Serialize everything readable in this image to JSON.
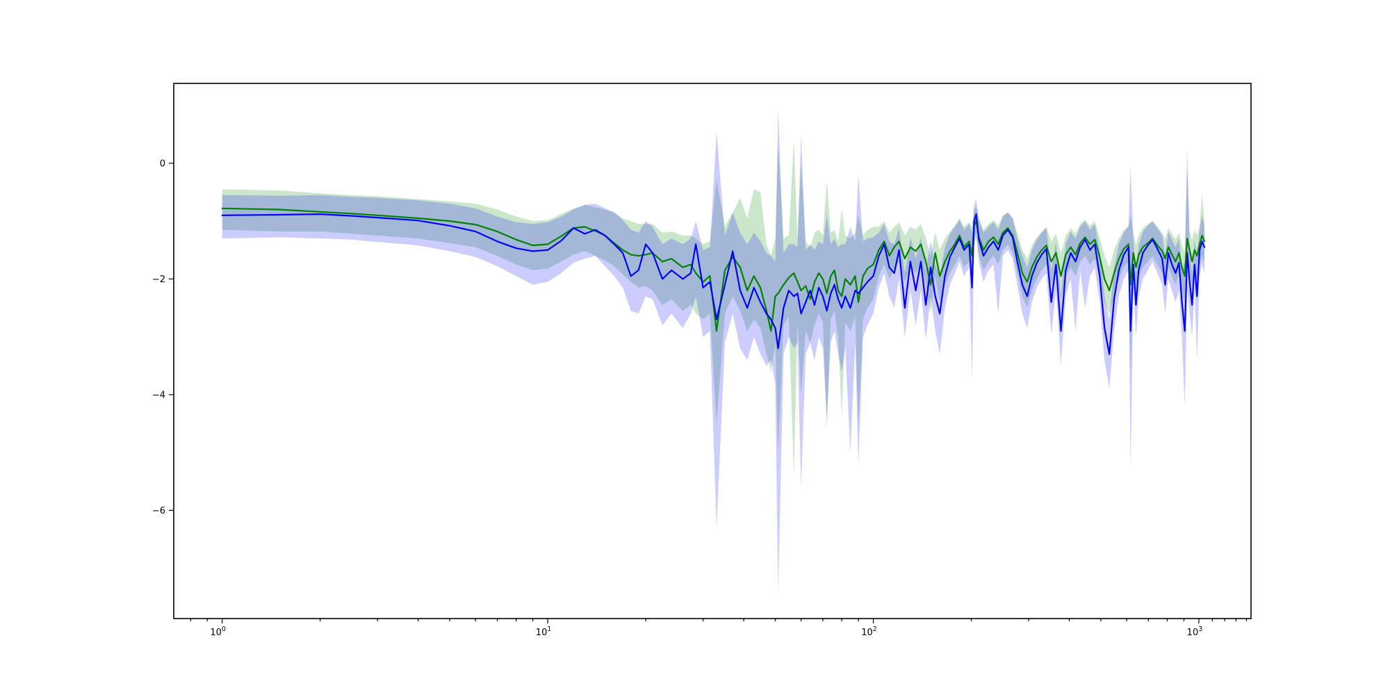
{
  "figure": {
    "background": "#ffffff",
    "title": "",
    "xlabel": "",
    "ylabel": ""
  },
  "chart_data": {
    "type": "line",
    "x_scale": "log",
    "grid": false,
    "legend": null,
    "title": "",
    "xlabel": "",
    "ylabel": "",
    "x_range": [
      0.71,
      1446
    ],
    "y_range": [
      -7.87,
      1.38
    ],
    "x_ticks": [
      {
        "base": "10",
        "exp": "0",
        "value": 1
      },
      {
        "base": "10",
        "exp": "1",
        "value": 10
      },
      {
        "base": "10",
        "exp": "2",
        "value": 100
      },
      {
        "base": "10",
        "exp": "3",
        "value": 1000
      }
    ],
    "x_minor_ticks": [
      0.8,
      0.9,
      2,
      3,
      4,
      5,
      6,
      7,
      8,
      9,
      20,
      30,
      40,
      50,
      60,
      70,
      80,
      90,
      200,
      300,
      400,
      500,
      600,
      700,
      800,
      900,
      1100,
      1200,
      1300,
      1400
    ],
    "y_ticks": [
      {
        "label": "0",
        "value": 0
      },
      {
        "label": "−2",
        "value": -2
      },
      {
        "label": "−4",
        "value": -4
      },
      {
        "label": "−6",
        "value": -6
      }
    ],
    "series": [
      {
        "name": "green-series",
        "line_color": "#008000",
        "band_color_rgba": "rgba(0,128,0,0.2)",
        "line_width": 2.2
      },
      {
        "name": "blue-series",
        "line_color": "#0000ff",
        "band_color_rgba": "rgba(0,0,255,0.2)",
        "line_width": 2.2
      }
    ],
    "columns": [
      "x",
      "green_lo",
      "green_mean",
      "green_hi",
      "blue_lo",
      "blue_mean",
      "blue_hi"
    ],
    "points": [
      [
        1,
        -1.15,
        -0.78,
        -0.45,
        -1.3,
        -0.9,
        -0.55
      ],
      [
        1.5,
        -1.18,
        -0.8,
        -0.47,
        -1.28,
        -0.89,
        -0.56
      ],
      [
        2,
        -1.18,
        -0.84,
        -0.52,
        -1.3,
        -0.88,
        -0.55
      ],
      [
        2.5,
        -1.22,
        -0.87,
        -0.55,
        -1.32,
        -0.91,
        -0.58
      ],
      [
        3,
        -1.25,
        -0.9,
        -0.57,
        -1.36,
        -0.94,
        -0.6
      ],
      [
        4,
        -1.3,
        -0.95,
        -0.62,
        -1.42,
        -0.99,
        -0.64
      ],
      [
        5,
        -1.38,
        -1.0,
        -0.66,
        -1.52,
        -1.08,
        -0.7
      ],
      [
        6,
        -1.45,
        -1.06,
        -0.7,
        -1.62,
        -1.18,
        -0.78
      ],
      [
        7,
        -1.6,
        -1.18,
        -0.8,
        -1.78,
        -1.35,
        -0.92
      ],
      [
        8,
        -1.75,
        -1.32,
        -0.92,
        -1.95,
        -1.47,
        -1.02
      ],
      [
        9,
        -1.85,
        -1.42,
        -1.0,
        -2.1,
        -1.52,
        -1.05
      ],
      [
        10,
        -1.82,
        -1.4,
        -0.98,
        -2.05,
        -1.5,
        -1.02
      ],
      [
        11,
        -1.7,
        -1.26,
        -0.88,
        -1.9,
        -1.34,
        -0.92
      ],
      [
        12,
        -1.58,
        -1.12,
        -0.78,
        -1.72,
        -1.12,
        -0.8
      ],
      [
        13,
        -1.52,
        -1.1,
        -0.72,
        -1.65,
        -1.22,
        -0.72
      ],
      [
        14,
        -1.6,
        -1.17,
        -0.76,
        -1.6,
        -1.15,
        -0.7
      ],
      [
        15,
        -1.68,
        -1.25,
        -0.8,
        -1.78,
        -1.25,
        -0.78
      ],
      [
        16,
        -1.78,
        -1.38,
        -0.85,
        -1.95,
        -1.4,
        -0.85
      ],
      [
        17,
        -1.92,
        -1.5,
        -0.95,
        -2.15,
        -1.55,
        -0.98
      ],
      [
        18,
        -2.05,
        -1.58,
        -1.0,
        -2.55,
        -1.95,
        -1.15
      ],
      [
        19,
        -2.15,
        -1.6,
        -1.05,
        -2.6,
        -1.85,
        -1.2
      ],
      [
        20,
        -2.12,
        -1.58,
        -1.05,
        -2.3,
        -1.4,
        -1.0
      ],
      [
        21,
        -2.2,
        -1.55,
        -1.05,
        -2.35,
        -1.55,
        -1.1
      ],
      [
        22.5,
        -2.45,
        -1.7,
        -1.2,
        -2.8,
        -2.0,
        -1.4
      ],
      [
        24,
        -2.35,
        -1.65,
        -1.18,
        -2.6,
        -1.85,
        -1.3
      ],
      [
        26,
        -2.55,
        -1.8,
        -1.25,
        -2.85,
        -2.0,
        -1.4
      ],
      [
        27.5,
        -2.45,
        -1.75,
        -1.25,
        -2.6,
        -1.9,
        -1.3
      ],
      [
        28.5,
        -2.6,
        -1.9,
        -1.3,
        -2.3,
        -1.4,
        -1.0
      ],
      [
        30,
        -2.7,
        -2.05,
        -1.4,
        -3.0,
        -2.15,
        -1.5
      ],
      [
        31.5,
        -2.6,
        -1.95,
        -1.35,
        -2.9,
        -2.05,
        -1.45
      ],
      [
        33,
        -4.5,
        -2.9,
        -0.3,
        -6.3,
        -2.7,
        0.55
      ],
      [
        35,
        -2.6,
        -1.85,
        -1.1,
        -3.1,
        -2.1,
        -1.25
      ],
      [
        37,
        -2.3,
        -1.62,
        -0.85,
        -2.6,
        -1.52,
        -0.85
      ],
      [
        39,
        -2.55,
        -1.8,
        -0.6,
        -3.2,
        -2.2,
        -1.2
      ],
      [
        41,
        -2.9,
        -2.2,
        -0.95,
        -3.4,
        -2.5,
        -1.4
      ],
      [
        43,
        -2.7,
        -1.95,
        -0.45,
        -3.0,
        -2.15,
        -1.2
      ],
      [
        45,
        -2.85,
        -2.15,
        -0.5,
        -3.3,
        -2.4,
        -1.35
      ],
      [
        47,
        -3.3,
        -2.55,
        -1.4,
        -3.5,
        -2.6,
        -1.55
      ],
      [
        48.5,
        -3.6,
        -2.9,
        -1.6,
        -3.4,
        -2.7,
        -1.6
      ],
      [
        50,
        -3.1,
        -2.3,
        -1.3,
        -3.8,
        -2.85,
        -1.7
      ],
      [
        51,
        -5.0,
        -2.25,
        0.3,
        -7.45,
        -3.2,
        0.95
      ],
      [
        53,
        -2.8,
        -2.1,
        -1.3,
        -3.3,
        -2.5,
        -1.55
      ],
      [
        55,
        -2.65,
        -1.98,
        -1.25,
        -3.0,
        -2.2,
        -1.4
      ],
      [
        57,
        -5.4,
        -1.9,
        0.4,
        -3.2,
        -2.3,
        -1.4
      ],
      [
        58.5,
        -2.75,
        -2.05,
        -1.3,
        -3.1,
        -2.25,
        -1.45
      ],
      [
        60,
        -4.0,
        -2.2,
        0.0,
        -5.6,
        -2.6,
        0.5
      ],
      [
        62,
        -2.9,
        -2.12,
        -1.35,
        -3.3,
        -2.4,
        -1.5
      ],
      [
        64,
        -3.1,
        -2.35,
        -1.45,
        -3.1,
        -2.2,
        -1.4
      ],
      [
        66,
        -2.8,
        -2.05,
        -1.2,
        -3.4,
        -2.45,
        -1.5
      ],
      [
        68,
        -2.6,
        -1.9,
        -1.15,
        -3.0,
        -2.15,
        -1.35
      ],
      [
        70,
        -2.75,
        -2.0,
        -1.25,
        -3.2,
        -2.3,
        -1.4
      ],
      [
        72,
        -4.6,
        -2.25,
        -0.3,
        -4.4,
        -2.55,
        -0.9
      ],
      [
        74,
        -2.7,
        -1.95,
        -1.2,
        -3.1,
        -2.25,
        -1.4
      ],
      [
        76,
        -2.55,
        -1.85,
        -1.15,
        -2.9,
        -2.1,
        -1.3
      ],
      [
        78,
        -3.0,
        -2.2,
        -1.35,
        -3.3,
        -2.35,
        -1.45
      ],
      [
        80,
        -4.4,
        -2.3,
        -0.8,
        -3.6,
        -2.5,
        -1.4
      ],
      [
        82,
        -2.75,
        -2.0,
        -1.25,
        -3.2,
        -2.3,
        -1.4
      ],
      [
        85,
        -2.9,
        -2.1,
        -1.3,
        -5.0,
        -2.5,
        -1.1
      ],
      [
        88,
        -2.65,
        -1.95,
        -1.2,
        -3.1,
        -2.2,
        -1.35
      ],
      [
        90,
        -4.6,
        -2.4,
        -0.9,
        -5.2,
        -2.25,
        -0.2
      ],
      [
        93,
        -2.7,
        -1.95,
        -1.25,
        -3.0,
        -2.15,
        -1.35
      ],
      [
        96,
        -2.5,
        -1.82,
        -1.15,
        -2.8,
        -2.05,
        -1.3
      ],
      [
        100,
        -2.35,
        -1.75,
        -1.1,
        -2.6,
        -1.95,
        -1.28
      ],
      [
        104,
        -1.95,
        -1.5,
        -1.1,
        -2.15,
        -1.6,
        -1.2
      ],
      [
        108,
        -1.75,
        -1.35,
        -1.0,
        -1.9,
        -1.4,
        -1.05
      ],
      [
        112,
        -2.0,
        -1.6,
        -1.2,
        -2.3,
        -1.8,
        -1.35
      ],
      [
        116,
        -1.85,
        -1.45,
        -1.1,
        -2.5,
        -1.9,
        -1.4
      ],
      [
        120,
        -1.7,
        -1.35,
        -1.02,
        -2.0,
        -1.5,
        -1.12
      ],
      [
        125,
        -2.05,
        -1.65,
        -1.25,
        -3.0,
        -2.5,
        -1.9
      ],
      [
        130,
        -1.8,
        -1.45,
        -1.1,
        -2.2,
        -1.7,
        -1.28
      ],
      [
        135,
        -1.9,
        -1.52,
        -1.15,
        -2.8,
        -2.2,
        -1.65
      ],
      [
        140,
        -1.75,
        -1.4,
        -1.05,
        -2.2,
        -1.7,
        -1.28
      ],
      [
        145,
        -2.1,
        -1.7,
        -1.3,
        -3.05,
        -2.45,
        -1.85
      ],
      [
        150,
        -2.6,
        -2.1,
        -1.6,
        -2.3,
        -1.8,
        -1.35
      ],
      [
        155,
        -1.95,
        -1.55,
        -1.2,
        -2.9,
        -2.3,
        -1.75
      ],
      [
        160,
        -2.4,
        -1.95,
        -1.5,
        -3.3,
        -2.6,
        -1.95
      ],
      [
        166,
        -2.1,
        -1.7,
        -1.3,
        -2.5,
        -1.95,
        -1.45
      ],
      [
        172,
        -1.9,
        -1.52,
        -1.18,
        -2.1,
        -1.62,
        -1.22
      ],
      [
        178,
        -1.75,
        -1.4,
        -1.08,
        -1.9,
        -1.45,
        -1.1
      ],
      [
        184,
        -1.6,
        -1.25,
        -0.95,
        -1.7,
        -1.3,
        -0.98
      ],
      [
        190,
        -1.8,
        -1.45,
        -1.1,
        -1.95,
        -1.5,
        -1.15
      ],
      [
        197,
        -1.7,
        -1.35,
        -1.02,
        -1.8,
        -1.4,
        -1.05
      ],
      [
        201,
        -2.1,
        -1.6,
        -1.1,
        -3.75,
        -2.15,
        -1.2
      ],
      [
        204,
        -1.4,
        -1.08,
        -0.8,
        -1.35,
        -1.0,
        -0.72
      ],
      [
        207,
        -1.3,
        -1.0,
        -0.75,
        -1.2,
        -0.88,
        -0.62
      ],
      [
        211,
        -1.6,
        -1.28,
        -0.95,
        -1.7,
        -1.32,
        -0.98
      ],
      [
        218,
        -1.85,
        -1.5,
        -1.15,
        -2.05,
        -1.6,
        -1.2
      ],
      [
        226,
        -1.7,
        -1.35,
        -1.05,
        -1.85,
        -1.45,
        -1.1
      ],
      [
        234,
        -1.6,
        -1.28,
        -0.98,
        -1.75,
        -1.35,
        -1.02
      ],
      [
        242,
        -1.75,
        -1.4,
        -1.08,
        -2.6,
        -1.5,
        -1.15
      ],
      [
        250,
        -1.5,
        -1.2,
        -0.9,
        -1.6,
        -1.25,
        -0.92
      ],
      [
        259,
        -1.4,
        -1.12,
        -0.85,
        -1.5,
        -1.15,
        -0.85
      ],
      [
        268,
        -1.55,
        -1.25,
        -0.95,
        -1.65,
        -1.28,
        -0.95
      ],
      [
        277,
        -1.9,
        -1.55,
        -1.2,
        -2.1,
        -1.7,
        -1.3
      ],
      [
        287,
        -2.3,
        -1.9,
        -1.5,
        -2.6,
        -2.1,
        -1.6
      ],
      [
        297,
        -2.5,
        -2.05,
        -1.65,
        -2.85,
        -2.3,
        -1.8
      ],
      [
        307,
        -2.2,
        -1.8,
        -1.42,
        -2.4,
        -1.95,
        -1.5
      ],
      [
        318,
        -2.0,
        -1.62,
        -1.28,
        -2.15,
        -1.72,
        -1.32
      ],
      [
        329,
        -1.85,
        -1.5,
        -1.18,
        -2.0,
        -1.58,
        -1.2
      ],
      [
        340,
        -1.75,
        -1.42,
        -1.1,
        -1.9,
        -1.48,
        -1.12
      ],
      [
        352,
        -2.1,
        -1.7,
        -1.35,
        -2.95,
        -2.4,
        -1.85
      ],
      [
        364,
        -1.9,
        -1.55,
        -1.22,
        -2.2,
        -1.75,
        -1.35
      ],
      [
        377,
        -2.35,
        -1.95,
        -1.55,
        -3.5,
        -2.9,
        -2.3
      ],
      [
        390,
        -1.95,
        -1.58,
        -1.25,
        -2.3,
        -1.85,
        -1.4
      ],
      [
        404,
        -1.8,
        -1.45,
        -1.12,
        -2.0,
        -1.55,
        -1.18
      ],
      [
        418,
        -1.95,
        -1.58,
        -1.22,
        -2.9,
        -1.7,
        -1.3
      ],
      [
        432,
        -1.7,
        -1.38,
        -1.05,
        -1.85,
        -1.45,
        -1.1
      ],
      [
        447,
        -1.6,
        -1.28,
        -0.98,
        -2.5,
        -1.32,
        -1.0
      ],
      [
        463,
        -1.75,
        -1.4,
        -1.08,
        -1.95,
        -1.5,
        -1.15
      ],
      [
        479,
        -1.65,
        -1.32,
        -1.0,
        -1.8,
        -1.4,
        -1.05
      ],
      [
        496,
        -2.0,
        -1.62,
        -1.28,
        -2.4,
        -1.95,
        -1.5
      ],
      [
        513,
        -2.4,
        -2.0,
        -1.6,
        -3.4,
        -2.85,
        -2.3
      ],
      [
        531,
        -2.6,
        -2.2,
        -1.8,
        -3.9,
        -3.3,
        -2.7
      ],
      [
        549,
        -2.3,
        -1.9,
        -1.5,
        -2.9,
        -2.35,
        -1.8
      ],
      [
        568,
        -2.0,
        -1.65,
        -1.3,
        -2.3,
        -1.85,
        -1.4
      ],
      [
        588,
        -1.8,
        -1.48,
        -1.15,
        -2.0,
        -1.58,
        -1.2
      ],
      [
        608,
        -1.7,
        -1.4,
        -1.08,
        -1.85,
        -1.45,
        -1.1
      ],
      [
        617,
        -3.6,
        -2.1,
        -0.9,
        -5.3,
        -2.9,
        -0.05
      ],
      [
        629,
        -1.9,
        -1.55,
        -1.2,
        -2.2,
        -1.75,
        -1.32
      ],
      [
        641,
        -2.2,
        -1.8,
        -1.42,
        -3.0,
        -2.45,
        -1.9
      ],
      [
        653,
        -1.95,
        -1.58,
        -1.25,
        -2.3,
        -1.85,
        -1.42
      ],
      [
        673,
        -1.8,
        -1.45,
        -1.12,
        -2.0,
        -1.55,
        -1.18
      ],
      [
        697,
        -1.7,
        -1.38,
        -1.05,
        -1.85,
        -1.42,
        -1.08
      ],
      [
        721,
        -1.6,
        -1.3,
        -1.0,
        -1.7,
        -1.32,
        -1.0
      ],
      [
        746,
        -1.75,
        -1.42,
        -1.1,
        -1.9,
        -1.48,
        -1.12
      ],
      [
        772,
        -1.9,
        -1.52,
        -1.2,
        -2.1,
        -1.65,
        -1.25
      ],
      [
        788,
        -2.05,
        -1.65,
        -1.3,
        -2.6,
        -2.1,
        -1.6
      ],
      [
        806,
        -1.8,
        -1.45,
        -1.12,
        -2.0,
        -1.55,
        -1.18
      ],
      [
        827,
        -1.95,
        -1.58,
        -1.22,
        -2.2,
        -1.75,
        -1.32
      ],
      [
        848,
        -2.1,
        -1.7,
        -1.32,
        -2.4,
        -1.9,
        -1.45
      ],
      [
        869,
        -1.9,
        -1.55,
        -1.2,
        -2.2,
        -1.72,
        -1.3
      ],
      [
        887,
        -2.2,
        -1.8,
        -1.42,
        -3.0,
        -2.4,
        -1.85
      ],
      [
        905,
        -2.4,
        -1.95,
        -1.55,
        -4.2,
        -2.9,
        -1.7
      ],
      [
        921,
        -1.7,
        -1.3,
        -0.1,
        -2.2,
        -1.55,
        0.25
      ],
      [
        937,
        -1.9,
        -1.5,
        -1.15,
        -2.6,
        -2.05,
        -1.55
      ],
      [
        953,
        -2.1,
        -1.7,
        -1.32,
        -3.0,
        -2.45,
        -1.9
      ],
      [
        970,
        -1.85,
        -1.5,
        -1.15,
        -2.2,
        -1.75,
        -1.32
      ],
      [
        987,
        -2.0,
        -1.6,
        -1.25,
        -3.4,
        -2.3,
        -1.6
      ],
      [
        1005,
        -1.75,
        -1.4,
        -1.08,
        -1.95,
        -1.5,
        -1.15
      ],
      [
        1023,
        -1.6,
        -1.25,
        -0.55,
        -1.75,
        -1.35,
        -0.9
      ],
      [
        1040,
        -1.7,
        -1.35,
        -1.02,
        -1.9,
        -1.45,
        -1.1
      ]
    ],
    "axis_style": {
      "spine_color": "#000000",
      "tick_color": "#000000",
      "tick_label_size": 13,
      "exp_label_size": 9.5
    }
  }
}
